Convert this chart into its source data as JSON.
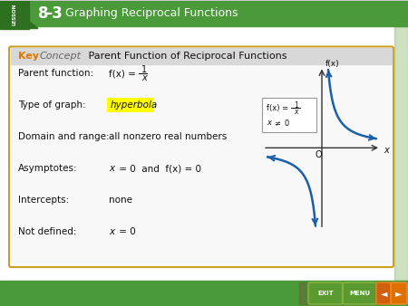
{
  "bg_color": "#c8c8c8",
  "header_bg": "#4a9a3a",
  "lesson_bg": "#2d7020",
  "card_bg": "#f0f0f0",
  "card_border": "#c8a020",
  "key_color": "#e07800",
  "concept_color": "#666666",
  "hyperbola_highlight": "#ffff00",
  "curve_color": "#1a5fa8",
  "axes_color": "#333333",
  "nav_bg": "#4a9a3a",
  "nav_dark": "#888888",
  "rows": [
    [
      "Parent function:",
      "f(x) = 1/x"
    ],
    [
      "Type of graph:",
      "hyperbola"
    ],
    [
      "Domain and range:",
      "all nonzero real numbers"
    ],
    [
      "Asymptotes:",
      "x = 0 and f(x) = 0"
    ],
    [
      "Intercepts:",
      "none"
    ],
    [
      "Not defined:",
      "x = 0"
    ]
  ]
}
